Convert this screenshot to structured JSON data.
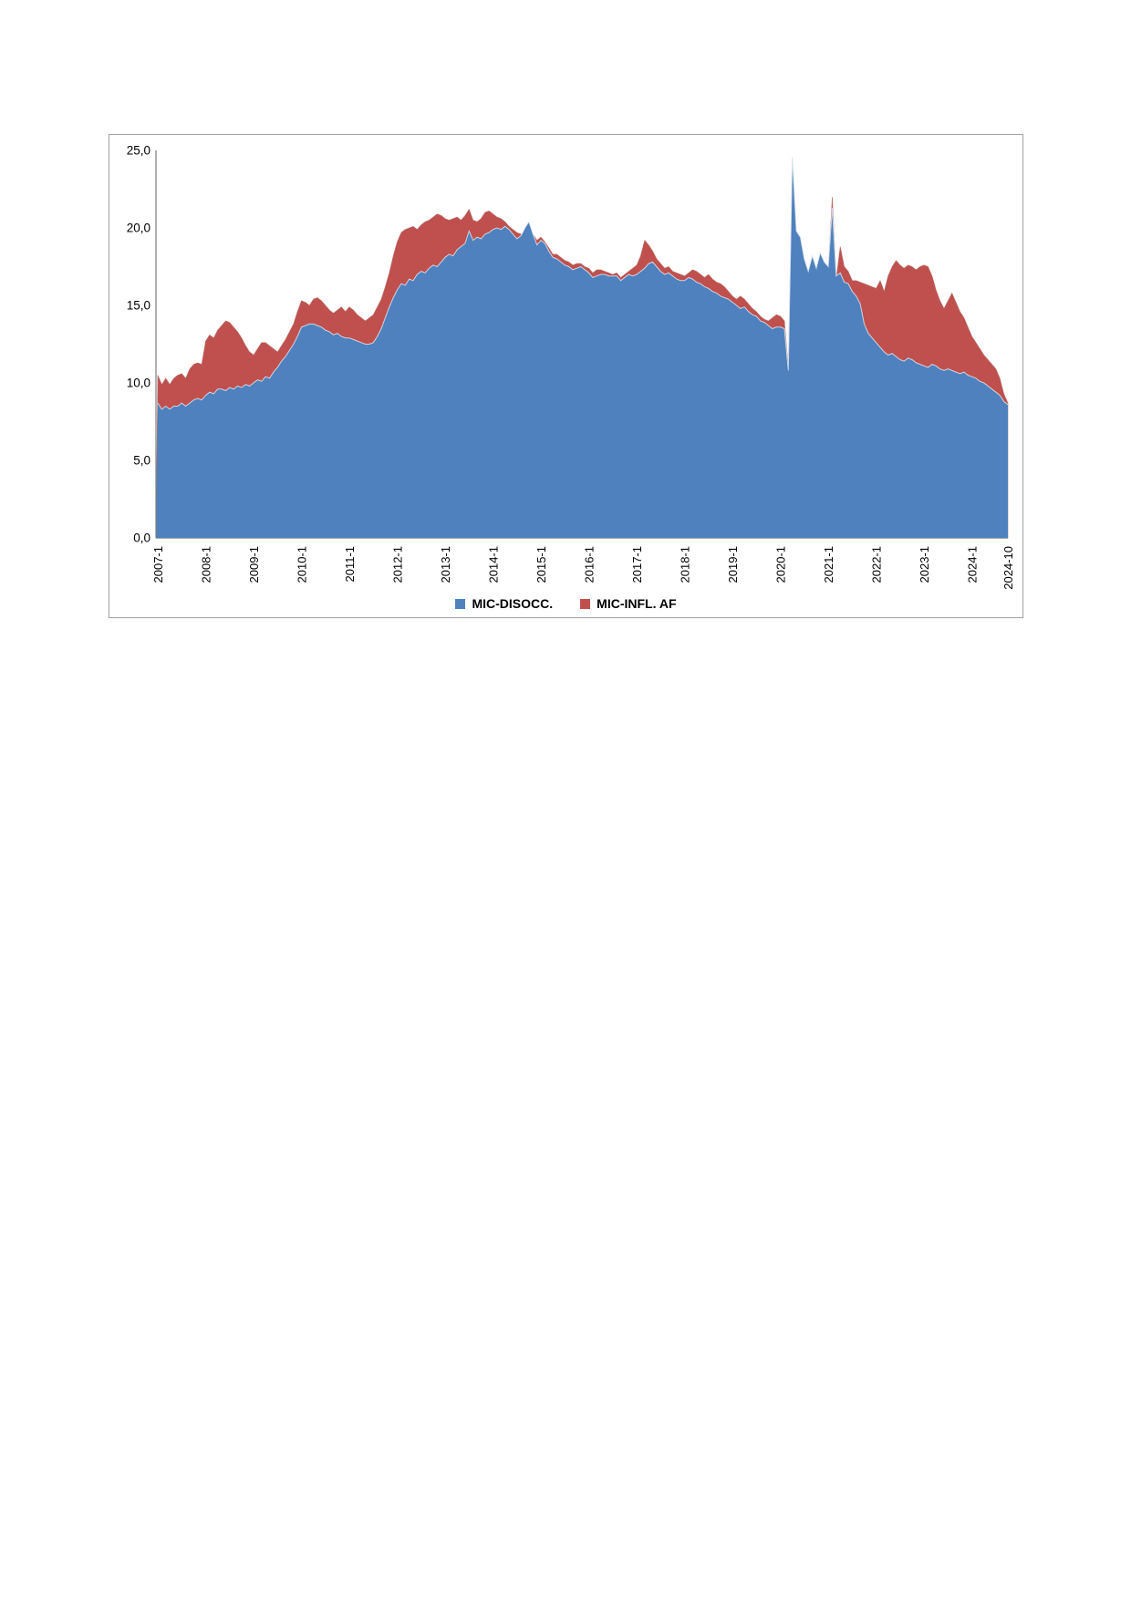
{
  "chart": {
    "y_axis": {
      "labels": [
        "0,0",
        "5,0",
        "10,0",
        "15,0",
        "20,0",
        "25,0"
      ],
      "values": [
        0,
        5,
        10,
        15,
        20,
        25
      ]
    },
    "x_axis": {
      "ticks": [
        {
          "label": "2007-1",
          "month": 0
        },
        {
          "label": "2008-1",
          "month": 12
        },
        {
          "label": "2009-1",
          "month": 24
        },
        {
          "label": "2010-1",
          "month": 36
        },
        {
          "label": "2011-1",
          "month": 48
        },
        {
          "label": "2012-1",
          "month": 60
        },
        {
          "label": "2013-1",
          "month": 72
        },
        {
          "label": "2014-1",
          "month": 84
        },
        {
          "label": "2015-1",
          "month": 96
        },
        {
          "label": "2016-1",
          "month": 108
        },
        {
          "label": "2017-1",
          "month": 120
        },
        {
          "label": "2018-1",
          "month": 132
        },
        {
          "label": "2019-1",
          "month": 144
        },
        {
          "label": "2020-1",
          "month": 156
        },
        {
          "label": "2021-1",
          "month": 168
        },
        {
          "label": "2022-1",
          "month": 180
        },
        {
          "label": "2023-1",
          "month": 192
        },
        {
          "label": "2024-1",
          "month": 204
        },
        {
          "label": "2024-10",
          "month": 213
        }
      ]
    },
    "legend": [
      {
        "label": "MIC-DISOCC.",
        "color": "#4e81bd"
      },
      {
        "label": "MIC-INFL. AF",
        "color": "#c0504d"
      }
    ]
  },
  "chart_data": {
    "type": "area",
    "title": "",
    "xlabel": "",
    "ylabel": "",
    "x_start": "2007-01",
    "x_end": "2024-10",
    "frequency": "monthly",
    "ylim": [
      0,
      25
    ],
    "grid": false,
    "legend_position": "bottom",
    "layout_note": "Two overlapping area series from zero baseline; MIC-DISOCC. (blue) is drawn in front of MIC-INFL. AF (red); red is visible only where it exceeds blue.",
    "series": [
      {
        "name": "MIC-DISOCC.",
        "color": "#4e81bd",
        "values": [
          8.7,
          8.3,
          8.5,
          8.3,
          8.5,
          8.5,
          8.7,
          8.5,
          8.7,
          8.9,
          9.0,
          8.9,
          9.2,
          9.4,
          9.3,
          9.6,
          9.6,
          9.5,
          9.7,
          9.6,
          9.8,
          9.7,
          9.9,
          9.8,
          10.0,
          10.2,
          10.1,
          10.4,
          10.3,
          10.7,
          11.0,
          11.4,
          11.7,
          12.1,
          12.5,
          13.0,
          13.6,
          13.7,
          13.8,
          13.8,
          13.7,
          13.6,
          13.4,
          13.3,
          13.1,
          13.2,
          13.0,
          12.9,
          12.9,
          12.8,
          12.7,
          12.6,
          12.5,
          12.5,
          12.6,
          13.0,
          13.5,
          14.2,
          14.9,
          15.5,
          16.0,
          16.4,
          16.3,
          16.7,
          16.6,
          17.0,
          17.2,
          17.1,
          17.4,
          17.6,
          17.5,
          17.8,
          18.1,
          18.3,
          18.2,
          18.6,
          18.8,
          19.0,
          19.8,
          19.2,
          19.4,
          19.3,
          19.6,
          19.7,
          19.9,
          20.0,
          19.9,
          20.1,
          19.9,
          19.6,
          19.3,
          19.5,
          20.0,
          20.4,
          19.6,
          18.9,
          19.2,
          19.0,
          18.5,
          18.1,
          18.0,
          17.8,
          17.6,
          17.5,
          17.3,
          17.4,
          17.5,
          17.3,
          17.1,
          16.8,
          16.9,
          17.0,
          17.0,
          16.9,
          16.9,
          16.9,
          16.6,
          16.8,
          17.0,
          16.9,
          17.0,
          17.2,
          17.4,
          17.7,
          17.8,
          17.5,
          17.2,
          17.0,
          17.1,
          16.9,
          16.7,
          16.6,
          16.6,
          16.8,
          16.7,
          16.5,
          16.4,
          16.2,
          16.1,
          15.9,
          15.8,
          15.6,
          15.5,
          15.4,
          15.2,
          15.0,
          14.8,
          14.9,
          14.6,
          14.4,
          14.3,
          14.0,
          13.9,
          13.7,
          13.5,
          13.6,
          13.6,
          13.5,
          10.8,
          24.6,
          19.8,
          19.4,
          18.0,
          17.2,
          18.2,
          17.4,
          18.4,
          17.8,
          17.5,
          21.3,
          16.9,
          17.1,
          16.5,
          16.4,
          15.9,
          15.6,
          15.1,
          13.8,
          13.2,
          12.9,
          12.6,
          12.3,
          12.0,
          11.8,
          11.9,
          11.7,
          11.5,
          11.4,
          11.6,
          11.5,
          11.3,
          11.2,
          11.1,
          11.0,
          11.2,
          11.1,
          10.9,
          10.8,
          10.9,
          10.8,
          10.7,
          10.6,
          10.7,
          10.5,
          10.4,
          10.3,
          10.1,
          10.0,
          9.8,
          9.6,
          9.4,
          9.2,
          8.8,
          8.6
        ]
      },
      {
        "name": "MIC-INFL. AF",
        "color": "#c0504d",
        "values": [
          10.5,
          9.9,
          10.3,
          9.9,
          10.3,
          10.5,
          10.6,
          10.3,
          10.9,
          11.2,
          11.3,
          11.2,
          12.7,
          13.1,
          12.9,
          13.4,
          13.7,
          14.0,
          13.9,
          13.6,
          13.3,
          12.9,
          12.4,
          12.0,
          11.8,
          12.2,
          12.6,
          12.6,
          12.4,
          12.2,
          12.0,
          12.4,
          12.8,
          13.3,
          13.8,
          14.6,
          15.3,
          15.2,
          15.0,
          15.4,
          15.5,
          15.3,
          15.0,
          14.7,
          14.5,
          14.7,
          14.9,
          14.6,
          14.9,
          14.7,
          14.4,
          14.2,
          14.0,
          14.2,
          14.4,
          14.9,
          15.4,
          16.2,
          17.1,
          18.2,
          19.1,
          19.7,
          19.9,
          20.0,
          20.1,
          19.9,
          20.2,
          20.4,
          20.5,
          20.7,
          20.9,
          20.8,
          20.6,
          20.5,
          20.6,
          20.7,
          20.5,
          20.8,
          21.2,
          20.5,
          20.4,
          20.6,
          21.0,
          21.1,
          20.9,
          20.7,
          20.6,
          20.4,
          20.1,
          19.9,
          19.7,
          19.6,
          19.5,
          19.8,
          19.6,
          19.2,
          19.4,
          19.1,
          18.7,
          18.3,
          18.3,
          18.1,
          17.9,
          17.8,
          17.6,
          17.7,
          17.7,
          17.5,
          17.4,
          17.1,
          17.3,
          17.3,
          17.2,
          17.1,
          17.0,
          17.1,
          16.8,
          17.0,
          17.2,
          17.4,
          17.6,
          18.2,
          19.2,
          18.9,
          18.5,
          18.0,
          17.7,
          17.4,
          17.5,
          17.2,
          17.1,
          17.0,
          16.9,
          17.1,
          17.3,
          17.2,
          17.0,
          16.8,
          17.0,
          16.7,
          16.5,
          16.4,
          16.2,
          15.9,
          15.6,
          15.4,
          15.6,
          15.4,
          15.1,
          14.8,
          14.6,
          14.3,
          14.1,
          14.0,
          14.2,
          14.4,
          14.3,
          14.0,
          11.0,
          24.0,
          19.5,
          19.0,
          17.8,
          17.0,
          18.0,
          17.2,
          18.2,
          17.6,
          17.3,
          22.0,
          16.7,
          18.8,
          17.5,
          17.2,
          16.6,
          16.6,
          16.5,
          16.4,
          16.3,
          16.2,
          16.1,
          16.6,
          15.9,
          16.9,
          17.5,
          17.9,
          17.6,
          17.4,
          17.6,
          17.5,
          17.3,
          17.5,
          17.6,
          17.5,
          16.9,
          16.0,
          15.3,
          14.8,
          15.3,
          15.8,
          15.2,
          14.6,
          14.2,
          13.6,
          13.0,
          12.6,
          12.2,
          11.8,
          11.5,
          11.2,
          10.9,
          10.3,
          9.3,
          8.7
        ]
      }
    ]
  }
}
